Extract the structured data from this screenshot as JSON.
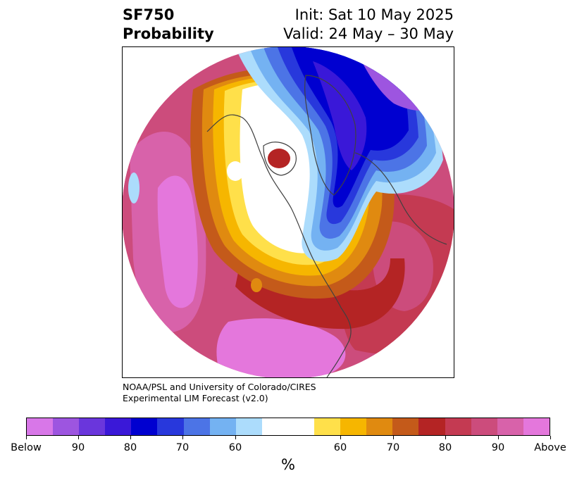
{
  "title": {
    "left_line1": "SF750",
    "left_line2": "Probability",
    "right_line1": "Init: Sat 10 May 2025",
    "right_line2": "Valid: 24 May – 30 May"
  },
  "credit": {
    "line1": "NOAA/PSL and University of Colorado/CIRES",
    "line2": "Experimental LIM Forecast (v2.0)"
  },
  "colorbar": {
    "unit": "%",
    "colors": [
      "#d877e8",
      "#9d55e0",
      "#6a36dc",
      "#3a18d8",
      "#0000d0",
      "#2838dc",
      "#4c74e6",
      "#74b2f2",
      "#acdcfc",
      "#ffffff",
      "#ffe04a",
      "#f6b600",
      "#e08a10",
      "#c45a1a",
      "#b42424",
      "#c43a52",
      "#cc4c7c",
      "#d862aa",
      "#e477dc"
    ],
    "tick_labels": [
      "Below",
      "90",
      "80",
      "70",
      "60",
      "60",
      "70",
      "80",
      "90",
      "Above"
    ]
  },
  "map": {
    "projection": "north-polar-stereographic",
    "colors": {
      "below_extreme": "#d877e8",
      "below_90": "#9d55e0",
      "below_85": "#6a36dc",
      "below_80": "#3a18d8",
      "below_75": "#0000d0",
      "below_70": "#2838dc",
      "below_65": "#4c74e6",
      "below_60": "#74b2f2",
      "below_55": "#acdcfc",
      "neutral": "#ffffff",
      "above_55": "#ffe04a",
      "above_60": "#f6b600",
      "above_65": "#e08a10",
      "above_70": "#c45a1a",
      "above_75": "#b42424",
      "above_80": "#c43a52",
      "above_85": "#cc4c7c",
      "above_90": "#d862aa",
      "above_extreme": "#e477dc",
      "coastline": "#404040"
    }
  }
}
